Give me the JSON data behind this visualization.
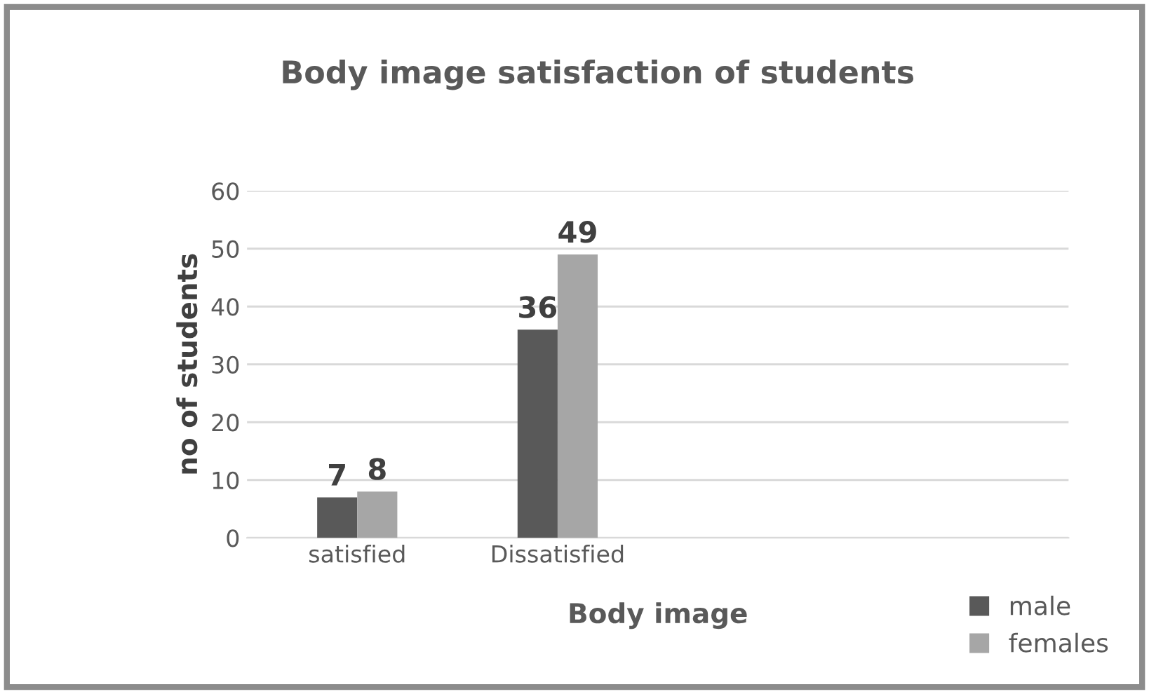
{
  "chart_data": {
    "type": "bar",
    "title": "Body image satisfaction of students",
    "xlabel": "Body image",
    "ylabel": "no of students",
    "categories": [
      "satisfied",
      "Dissatisfied"
    ],
    "series": [
      {
        "name": "male",
        "color": "#595959",
        "values": [
          7,
          36
        ]
      },
      {
        "name": "females",
        "color": "#a6a6a6",
        "values": [
          8,
          49
        ]
      }
    ],
    "ylim": [
      0,
      60
    ],
    "yticks": [
      0,
      10,
      20,
      30,
      40,
      50,
      60
    ],
    "grid": "y",
    "legend": "bottom right",
    "data_labels": true
  }
}
